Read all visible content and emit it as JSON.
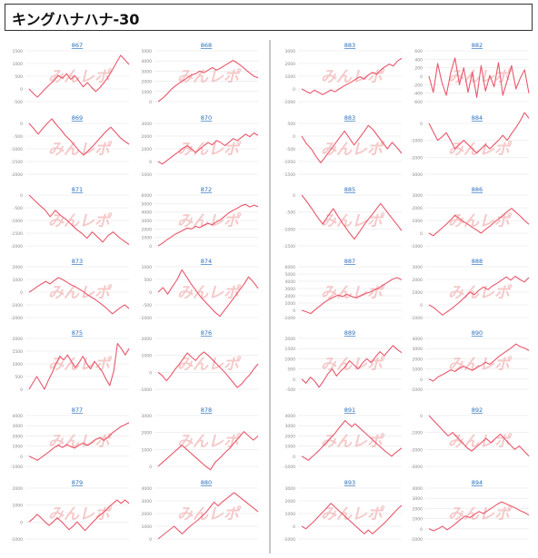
{
  "page": {
    "title": "キングハナハナ-30"
  },
  "watermark": "みんレポ",
  "colors": {
    "line": "#e8576b",
    "link": "#2a6ebb",
    "grid": "#e6e6e6",
    "axis": "#888888",
    "watermark": "#f2b8b8"
  },
  "chart_data": [
    {
      "type": "line",
      "id": "867",
      "title": "867",
      "yticks": [
        "1500",
        "1000",
        "500",
        "0",
        "-500"
      ],
      "ylim": [
        -500,
        1500
      ],
      "values": [
        0,
        -180,
        -320,
        -150,
        20,
        180,
        330,
        520,
        420,
        600,
        380,
        520,
        300,
        80,
        250,
        60,
        -100,
        50,
        250,
        480,
        750,
        1050,
        1320,
        1150,
        960
      ]
    },
    {
      "type": "line",
      "id": "868",
      "title": "868",
      "yticks": [
        "5000",
        "4000",
        "3000",
        "2000",
        "1000",
        "0"
      ],
      "ylim": [
        0,
        5000
      ],
      "values": [
        0,
        300,
        700,
        1150,
        1500,
        1800,
        2050,
        2350,
        2600,
        2750,
        3000,
        2850,
        3100,
        3350,
        3100,
        3300,
        3550,
        3800,
        4050,
        3800,
        3500,
        3150,
        2800,
        2500,
        2350
      ]
    },
    {
      "type": "line",
      "id": "883",
      "title": "883",
      "yticks": [
        "3000",
        "2000",
        "1000",
        "0",
        "-1000"
      ],
      "ylim": [
        -1000,
        3000
      ],
      "values": [
        0,
        -180,
        -350,
        -100,
        -260,
        -450,
        -280,
        -80,
        -220,
        0,
        200,
        380,
        560,
        780,
        960,
        760,
        1100,
        1300,
        1150,
        1500,
        1750,
        1950,
        1800,
        2200,
        2400
      ]
    },
    {
      "type": "line",
      "id": "882",
      "title": "882",
      "yticks": [
        "600",
        "400",
        "200",
        "0",
        "-200",
        "-400",
        "-600"
      ],
      "ylim": [
        -600,
        600
      ],
      "values": [
        0,
        -380,
        300,
        -150,
        -450,
        80,
        430,
        -200,
        200,
        -380,
        100,
        -500,
        250,
        -350,
        20,
        -250,
        320,
        -450,
        -100,
        250,
        -300,
        -50,
        150,
        -400
      ]
    },
    {
      "type": "line",
      "id": "869",
      "title": "869",
      "yticks": [
        "0",
        "-500",
        "-1000",
        "-1500",
        "-2000"
      ],
      "ylim": [
        -2000,
        0
      ],
      "values": [
        0,
        -200,
        -420,
        -200,
        0,
        180,
        -50,
        -250,
        -480,
        -650,
        -860,
        -1080,
        -1250,
        -1080,
        -900,
        -700,
        -500,
        -300,
        -150,
        -350,
        -550,
        -700,
        -820
      ]
    },
    {
      "type": "line",
      "id": "870",
      "title": "870",
      "yticks": [
        "3000",
        "2000",
        "1000",
        "0",
        "-1000"
      ],
      "ylim": [
        -1000,
        3000
      ],
      "values": [
        0,
        -200,
        50,
        300,
        550,
        780,
        1050,
        1250,
        1000,
        700,
        980,
        1250,
        1500,
        1300,
        1650,
        1500,
        1250,
        1500,
        1800,
        1650,
        1900,
        2150,
        1950,
        2250,
        2050
      ]
    },
    {
      "type": "line",
      "id": "883b",
      "title": "883",
      "yticks": [
        "500",
        "0",
        "-500",
        "-1000",
        "-1500"
      ],
      "ylim": [
        -1500,
        500
      ],
      "values": [
        0,
        -300,
        -500,
        -800,
        -1050,
        -800,
        -550,
        -300,
        -50,
        200,
        -80,
        -350,
        -100,
        150,
        420,
        250,
        0,
        -250,
        -500,
        -250,
        -450,
        -680
      ]
    },
    {
      "type": "line",
      "id": "884",
      "title": "884",
      "yticks": [
        "0",
        "-1000",
        "-2000",
        "-3000"
      ],
      "ylim": [
        -3000,
        0
      ],
      "values": [
        0,
        -500,
        -1000,
        -800,
        -550,
        -1000,
        -1500,
        -1250,
        -1000,
        -1250,
        -1500,
        -1750,
        -1500,
        -1250,
        -1500,
        -1250,
        -1000,
        -700,
        -1000,
        -600,
        -250,
        150,
        650,
        300
      ]
    },
    {
      "type": "line",
      "id": "871",
      "title": "871",
      "yticks": [
        "0",
        "-500",
        "-1000",
        "-1500",
        "-2000"
      ],
      "ylim": [
        -2000,
        0
      ],
      "values": [
        0,
        -200,
        -400,
        -580,
        -850,
        -600,
        -800,
        -950,
        -1150,
        -1350,
        -1500,
        -1700,
        -1450,
        -1650,
        -1850,
        -1600,
        -1450,
        -1650,
        -1800,
        -1950
      ]
    },
    {
      "type": "line",
      "id": "872",
      "title": "872",
      "yticks": [
        "6000",
        "5000",
        "4000",
        "3000",
        "2000",
        "1000",
        "0"
      ],
      "ylim": [
        0,
        6000
      ],
      "values": [
        0,
        300,
        700,
        1000,
        1350,
        1600,
        1850,
        2100,
        2000,
        2300,
        2150,
        2450,
        2650,
        2500,
        2850,
        3100,
        3500,
        3900,
        4200,
        4450,
        4750,
        4900,
        4600,
        4800,
        4650
      ]
    },
    {
      "type": "line",
      "id": "885",
      "title": "885",
      "yticks": [
        "0",
        "-500",
        "-1000",
        "-1500"
      ],
      "ylim": [
        -1500,
        0
      ],
      "values": [
        0,
        -200,
        -420,
        -650,
        -860,
        -620,
        -400,
        -650,
        -880,
        -1100,
        -1300,
        -1080,
        -850,
        -650,
        -450,
        -250,
        -450,
        -650,
        -850,
        -1050
      ]
    },
    {
      "type": "line",
      "id": "886",
      "title": "886",
      "yticks": [
        "3000",
        "2000",
        "1000",
        "0",
        "-1000"
      ],
      "ylim": [
        -1000,
        3000
      ],
      "values": [
        0,
        -200,
        100,
        400,
        700,
        1050,
        1400,
        1150,
        900,
        700,
        450,
        250,
        0,
        300,
        550,
        850,
        1100,
        1400,
        1700,
        1950,
        1650,
        1350,
        1000,
        700
      ]
    },
    {
      "type": "line",
      "id": "873",
      "title": "873",
      "yticks": [
        "2000",
        "1000",
        "0",
        "-1000",
        "-2000"
      ],
      "ylim": [
        -2000,
        2000
      ],
      "values": [
        0,
        200,
        450,
        650,
        850,
        650,
        900,
        1150,
        1000,
        800,
        600,
        450,
        250,
        50,
        -200,
        -400,
        -600,
        -850,
        -1100,
        -1400,
        -1700,
        -1450,
        -1200,
        -1000,
        -1300
      ]
    },
    {
      "type": "line",
      "id": "874",
      "title": "874",
      "yticks": [
        "1000",
        "500",
        "0",
        "-500",
        "-1000"
      ],
      "ylim": [
        -1000,
        1000
      ],
      "values": [
        0,
        180,
        -80,
        220,
        500,
        880,
        600,
        300,
        50,
        -200,
        -400,
        -600,
        -800,
        -950,
        -700,
        -450,
        -200,
        50,
        300,
        600,
        400,
        150
      ]
    },
    {
      "type": "line",
      "id": "887",
      "title": "887",
      "yticks": [
        "6000",
        "5000",
        "4000",
        "3000",
        "2000",
        "1000",
        "0",
        "-1000"
      ],
      "ylim": [
        -1000,
        6000
      ],
      "values": [
        0,
        -200,
        -450,
        100,
        600,
        1100,
        1500,
        1800,
        2100,
        1900,
        2200,
        1900,
        1700,
        2000,
        2300,
        2500,
        2800,
        3100,
        3500,
        3900,
        4300,
        4500,
        4200
      ]
    },
    {
      "type": "line",
      "id": "888",
      "title": "888",
      "yticks": [
        "3000",
        "2000",
        "1000",
        "0",
        "-1000"
      ],
      "ylim": [
        -1000,
        3000
      ],
      "values": [
        0,
        -200,
        -500,
        -800,
        -550,
        -300,
        0,
        300,
        650,
        1000,
        800,
        1150,
        1400,
        1200,
        1500,
        1700,
        1950,
        2200,
        1950,
        2250,
        2000,
        1800,
        2150
      ]
    },
    {
      "type": "line",
      "id": "875",
      "title": "875",
      "yticks": [
        "2000",
        "1500",
        "1000",
        "500",
        "0"
      ],
      "ylim": [
        0,
        2000
      ],
      "values": [
        0,
        250,
        500,
        250,
        0,
        350,
        650,
        1000,
        1300,
        1150,
        1350,
        1100,
        850,
        1050,
        1300,
        1000,
        800,
        1100,
        900,
        700,
        400,
        150,
        700,
        1800,
        1600,
        1350,
        1600
      ]
    },
    {
      "type": "line",
      "id": "876",
      "title": "876",
      "yticks": [
        "2000",
        "1000",
        "0",
        "-1000"
      ],
      "ylim": [
        -1000,
        2000
      ],
      "values": [
        0,
        -200,
        -500,
        -200,
        150,
        450,
        800,
        1150,
        900,
        700,
        1000,
        1200,
        1000,
        750,
        500,
        250,
        0,
        -300,
        -600,
        -900,
        -700,
        -400,
        -150,
        200,
        500
      ]
    },
    {
      "type": "line",
      "id": "889",
      "title": "889",
      "yticks": [
        "2000",
        "1500",
        "1000",
        "500",
        "0",
        "-500"
      ],
      "ylim": [
        -500,
        2000
      ],
      "values": [
        0,
        -200,
        100,
        -100,
        -400,
        -100,
        250,
        500,
        150,
        400,
        600,
        900,
        700,
        500,
        800,
        1000,
        800,
        1100,
        1350,
        1150,
        1400,
        1650,
        1450,
        1300
      ]
    },
    {
      "type": "line",
      "id": "890",
      "title": "890",
      "yticks": [
        "4000",
        "3000",
        "2000",
        "1000",
        "0",
        "-1000"
      ],
      "ylim": [
        -1000,
        4000
      ],
      "values": [
        0,
        -200,
        200,
        400,
        650,
        900,
        750,
        1050,
        1250,
        1050,
        850,
        1150,
        1350,
        1650,
        1450,
        1800,
        2200,
        2500,
        2800,
        3100,
        3450,
        3200,
        3050,
        2800
      ]
    },
    {
      "type": "line",
      "id": "877",
      "title": "877",
      "yticks": [
        "4000",
        "3000",
        "2000",
        "1000",
        "0",
        "-1000"
      ],
      "ylim": [
        -1000,
        4000
      ],
      "values": [
        0,
        -200,
        -400,
        -100,
        200,
        500,
        850,
        1100,
        850,
        1150,
        950,
        800,
        1100,
        1300,
        1050,
        1300,
        1650,
        1800,
        1550,
        1900,
        2300,
        2600,
        2900,
        3100,
        3300
      ]
    },
    {
      "type": "line",
      "id": "878",
      "title": "878",
      "yticks": [
        "3000",
        "2000",
        "1000",
        "0"
      ],
      "ylim": [
        0,
        3000
      ],
      "values": [
        0,
        250,
        500,
        750,
        1000,
        1250,
        1000,
        750,
        500,
        250,
        0,
        -200,
        250,
        500,
        800,
        1050,
        1400,
        1700,
        2050,
        1800,
        1550,
        1800
      ]
    },
    {
      "type": "line",
      "id": "891",
      "title": "891",
      "yticks": [
        "4000",
        "3000",
        "2000",
        "1000",
        "0",
        "-1000"
      ],
      "ylim": [
        -1000,
        4000
      ],
      "values": [
        0,
        -200,
        -400,
        -100,
        200,
        500,
        850,
        1200,
        1550,
        1900,
        2250,
        2700,
        3100,
        3500,
        3200,
        2900,
        3200,
        2900,
        2600,
        2300,
        2000,
        1700,
        1400,
        1100,
        800,
        500,
        250,
        0,
        300,
        550,
        800
      ]
    },
    {
      "type": "line",
      "id": "892",
      "title": "892",
      "yticks": [
        "0",
        "-1000",
        "-2000",
        "-3000"
      ],
      "ylim": [
        -3000,
        0
      ],
      "values": [
        0,
        -300,
        -600,
        -900,
        -1200,
        -1000,
        -1300,
        -1600,
        -1900,
        -2100,
        -1850,
        -1600,
        -1350,
        -1600,
        -1350,
        -1100,
        -1400,
        -1700,
        -2000,
        -1800,
        -2100,
        -2400
      ]
    },
    {
      "type": "line",
      "id": "879",
      "title": "879",
      "yticks": [
        "2000",
        "1000",
        "0",
        "-1000"
      ],
      "ylim": [
        -1000,
        2000
      ],
      "values": [
        0,
        200,
        450,
        250,
        0,
        -200,
        0,
        250,
        50,
        -200,
        -450,
        -250,
        0,
        -250,
        -500,
        -250,
        0,
        250,
        450,
        650,
        900,
        1100,
        1300,
        1100,
        1300,
        1100
      ]
    },
    {
      "type": "line",
      "id": "880",
      "title": "880",
      "yticks": [
        "4000",
        "3000",
        "2000",
        "1000",
        "0"
      ],
      "ylim": [
        0,
        4000
      ],
      "values": [
        0,
        250,
        500,
        750,
        1000,
        700,
        400,
        700,
        1000,
        1250,
        1500,
        1800,
        2100,
        2500,
        2900,
        2600,
        2900,
        3150,
        3400,
        3650,
        3400,
        3150,
        2900,
        2650,
        2400,
        2150
      ]
    },
    {
      "type": "line",
      "id": "893",
      "title": "893",
      "yticks": [
        "3000",
        "2000",
        "1000",
        "0",
        "-1000"
      ],
      "ylim": [
        -1000,
        3000
      ],
      "values": [
        0,
        -200,
        100,
        400,
        750,
        1100,
        1450,
        1800,
        1500,
        1200,
        900,
        600,
        300,
        0,
        -300,
        -600,
        -300,
        -600,
        -300,
        0,
        300,
        650,
        1000,
        1350,
        1650
      ]
    },
    {
      "type": "line",
      "id": "894",
      "title": "894",
      "yticks": [
        "4000",
        "3000",
        "2000",
        "1000",
        "0",
        "-1000"
      ],
      "ylim": [
        -1000,
        4000
      ],
      "values": [
        0,
        -200,
        0,
        250,
        -100,
        200,
        550,
        950,
        1250,
        1100,
        1400,
        1700,
        1500,
        1800,
        2100,
        2400,
        2650,
        2450,
        2250,
        2050,
        1800,
        1600,
        1350
      ]
    }
  ]
}
